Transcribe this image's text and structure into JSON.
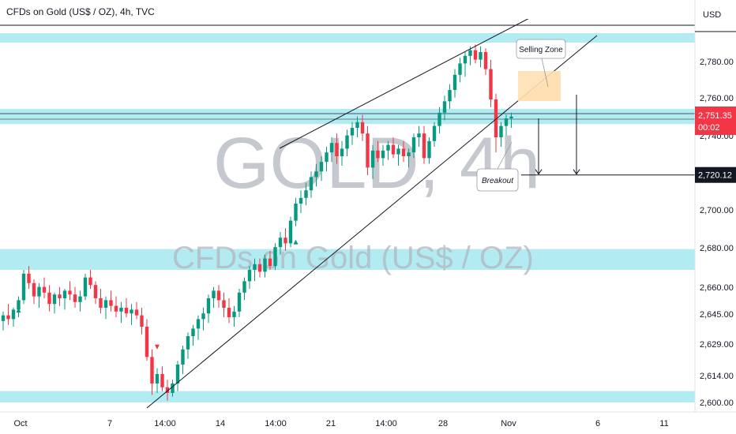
{
  "chart_data": {
    "type": "candlestick",
    "title": "CFDs on Gold (US$ / OZ), 4h, TVC",
    "watermark_symbol": "GOLD, 4h",
    "watermark_name": "CFDs on Gold (US$ / OZ)",
    "currency_label": "USD",
    "y_ticks": [
      "2,780.00",
      "2,760.00",
      "2,740.00",
      "2,700.00",
      "2,680.00",
      "2,660.00",
      "2,645.00",
      "2,629.00",
      "2,614.00",
      "2,600.00"
    ],
    "x_ticks": [
      "Oct",
      "7",
      "14:00",
      "14",
      "14:00",
      "21",
      "14:00",
      "28",
      "Nov",
      "6",
      "11"
    ],
    "current_price": "2,751.35",
    "countdown": "00:02",
    "target_price": "2,720.12",
    "annotations": [
      "Selling Zone",
      "Breakout"
    ],
    "zones": [
      [
        2790,
        2795
      ],
      [
        2747,
        2755
      ],
      [
        2670,
        2681
      ],
      [
        2600,
        2606
      ]
    ],
    "colors": {
      "up": "#089981",
      "down": "#f23645",
      "zone": "#b2ebf2",
      "sell_zone": "#ffe0b2"
    },
    "candles": [
      [
        2643,
        2648,
        2638,
        2646
      ],
      [
        2646,
        2652,
        2641,
        2644
      ],
      [
        2644,
        2650,
        2640,
        2649
      ],
      [
        2649,
        2656,
        2645,
        2654
      ],
      [
        2654,
        2670,
        2652,
        2668
      ],
      [
        2668,
        2672,
        2660,
        2663
      ],
      [
        2663,
        2665,
        2652,
        2656
      ],
      [
        2656,
        2663,
        2650,
        2661
      ],
      [
        2661,
        2666,
        2655,
        2658
      ],
      [
        2658,
        2662,
        2648,
        2652
      ],
      [
        2652,
        2658,
        2647,
        2657
      ],
      [
        2657,
        2661,
        2651,
        2655
      ],
      [
        2655,
        2660,
        2649,
        2659
      ],
      [
        2659,
        2664,
        2654,
        2657
      ],
      [
        2657,
        2661,
        2650,
        2653
      ],
      [
        2653,
        2659,
        2648,
        2656
      ],
      [
        2656,
        2668,
        2654,
        2666
      ],
      [
        2666,
        2670,
        2660,
        2662
      ],
      [
        2662,
        2664,
        2652,
        2655
      ],
      [
        2655,
        2660,
        2647,
        2650
      ],
      [
        2650,
        2656,
        2644,
        2654
      ],
      [
        2654,
        2659,
        2648,
        2651
      ],
      [
        2651,
        2656,
        2645,
        2648
      ],
      [
        2648,
        2653,
        2642,
        2650
      ],
      [
        2650,
        2655,
        2645,
        2647
      ],
      [
        2647,
        2652,
        2641,
        2649
      ],
      [
        2649,
        2653,
        2644,
        2646
      ],
      [
        2646,
        2650,
        2636,
        2640
      ],
      [
        2640,
        2644,
        2622,
        2624
      ],
      [
        2624,
        2628,
        2604,
        2610
      ],
      [
        2610,
        2618,
        2605,
        2615
      ],
      [
        2615,
        2619,
        2606,
        2608
      ],
      [
        2608,
        2612,
        2601,
        2605
      ],
      [
        2605,
        2612,
        2603,
        2610
      ],
      [
        2610,
        2622,
        2606,
        2620
      ],
      [
        2620,
        2630,
        2615,
        2628
      ],
      [
        2628,
        2637,
        2623,
        2635
      ],
      [
        2635,
        2641,
        2630,
        2639
      ],
      [
        2639,
        2646,
        2633,
        2644
      ],
      [
        2644,
        2650,
        2638,
        2647
      ],
      [
        2647,
        2657,
        2642,
        2655
      ],
      [
        2655,
        2661,
        2650,
        2659
      ],
      [
        2659,
        2662,
        2650,
        2654
      ],
      [
        2654,
        2658,
        2645,
        2650
      ],
      [
        2650,
        2655,
        2642,
        2645
      ],
      [
        2645,
        2651,
        2640,
        2648
      ],
      [
        2648,
        2660,
        2645,
        2658
      ],
      [
        2658,
        2666,
        2654,
        2664
      ],
      [
        2664,
        2672,
        2660,
        2670
      ],
      [
        2670,
        2676,
        2664,
        2673
      ],
      [
        2673,
        2676,
        2666,
        2669
      ],
      [
        2669,
        2678,
        2666,
        2676
      ],
      [
        2676,
        2680,
        2670,
        2672
      ],
      [
        2672,
        2684,
        2670,
        2682
      ],
      [
        2682,
        2690,
        2678,
        2687
      ],
      [
        2687,
        2692,
        2680,
        2684
      ],
      [
        2684,
        2698,
        2682,
        2696
      ],
      [
        2696,
        2708,
        2693,
        2705
      ],
      [
        2705,
        2712,
        2700,
        2708
      ],
      [
        2708,
        2716,
        2704,
        2712
      ],
      [
        2712,
        2722,
        2708,
        2719
      ],
      [
        2719,
        2726,
        2714,
        2722
      ],
      [
        2722,
        2730,
        2717,
        2727
      ],
      [
        2727,
        2735,
        2722,
        2732
      ],
      [
        2732,
        2740,
        2727,
        2737
      ],
      [
        2737,
        2742,
        2726,
        2730
      ],
      [
        2730,
        2738,
        2725,
        2734
      ],
      [
        2734,
        2744,
        2730,
        2741
      ],
      [
        2741,
        2748,
        2736,
        2745
      ],
      [
        2745,
        2751,
        2740,
        2748
      ],
      [
        2748,
        2752,
        2738,
        2742
      ],
      [
        2742,
        2746,
        2720,
        2724
      ],
      [
        2724,
        2736,
        2718,
        2733
      ],
      [
        2733,
        2738,
        2727,
        2729
      ],
      [
        2729,
        2736,
        2725,
        2733
      ],
      [
        2733,
        2738,
        2728,
        2736
      ],
      [
        2736,
        2740,
        2729,
        2731
      ],
      [
        2731,
        2736,
        2725,
        2734
      ],
      [
        2734,
        2738,
        2727,
        2730
      ],
      [
        2730,
        2734,
        2724,
        2732
      ],
      [
        2732,
        2742,
        2729,
        2740
      ],
      [
        2740,
        2746,
        2735,
        2742
      ],
      [
        2742,
        2746,
        2726,
        2729
      ],
      [
        2729,
        2740,
        2726,
        2738
      ],
      [
        2738,
        2748,
        2735,
        2746
      ],
      [
        2746,
        2756,
        2742,
        2753
      ],
      [
        2753,
        2762,
        2749,
        2759
      ],
      [
        2759,
        2768,
        2755,
        2765
      ],
      [
        2765,
        2776,
        2761,
        2773
      ],
      [
        2773,
        2782,
        2769,
        2779
      ],
      [
        2779,
        2785,
        2772,
        2783
      ],
      [
        2783,
        2788,
        2778,
        2786
      ],
      [
        2786,
        2789,
        2779,
        2781
      ],
      [
        2781,
        2788,
        2777,
        2785
      ],
      [
        2785,
        2787,
        2773,
        2776
      ],
      [
        2776,
        2781,
        2756,
        2760
      ],
      [
        2760,
        2763,
        2732,
        2740
      ],
      [
        2740,
        2748,
        2735,
        2746
      ],
      [
        2746,
        2752,
        2741,
        2750
      ],
      [
        2750,
        2753,
        2745,
        2751
      ]
    ]
  }
}
